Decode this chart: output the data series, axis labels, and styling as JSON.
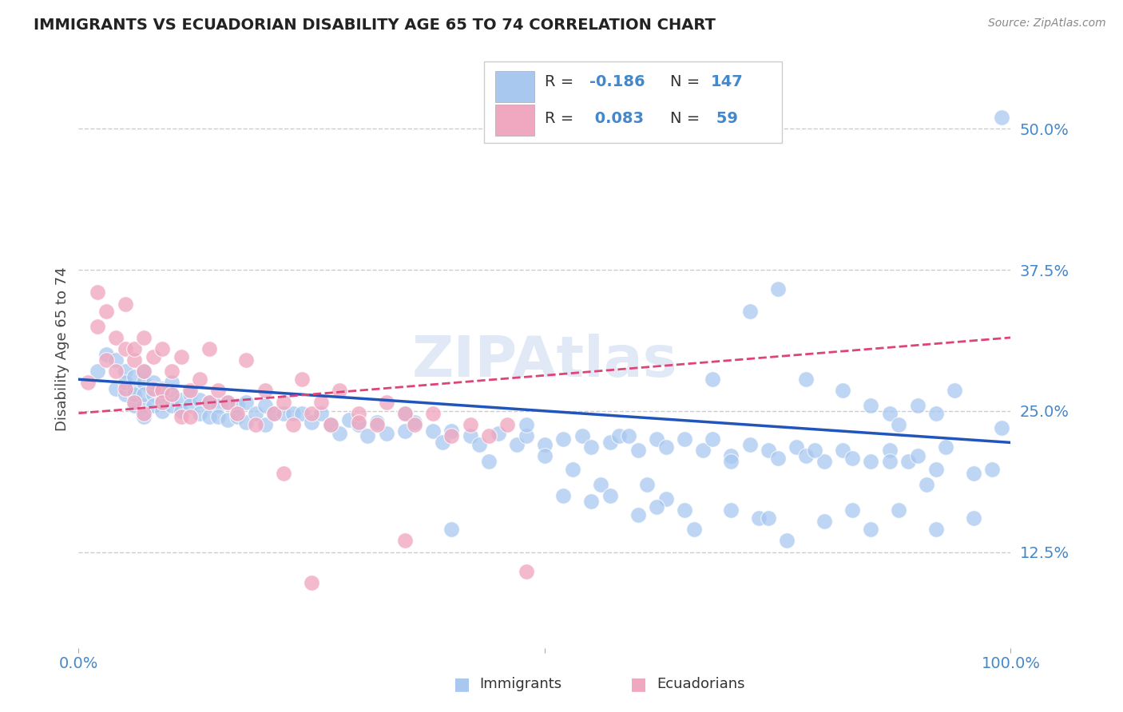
{
  "title": "IMMIGRANTS VS ECUADORIAN DISABILITY AGE 65 TO 74 CORRELATION CHART",
  "source": "Source: ZipAtlas.com",
  "ylabel": "Disability Age 65 to 74",
  "ytick_labels": [
    "12.5%",
    "25.0%",
    "37.5%",
    "50.0%"
  ],
  "ytick_values": [
    0.125,
    0.25,
    0.375,
    0.5
  ],
  "xmin": 0.0,
  "xmax": 1.0,
  "ymin": 0.04,
  "ymax": 0.57,
  "blue_color": "#a8c8f0",
  "pink_color": "#f0a8c0",
  "line_blue": "#2255bb",
  "line_pink": "#dd4477",
  "axis_color": "#4488cc",
  "background": "#ffffff",
  "grid_color": "#cccccc",
  "immigrants_x": [
    0.02,
    0.03,
    0.04,
    0.04,
    0.05,
    0.05,
    0.05,
    0.06,
    0.06,
    0.06,
    0.06,
    0.07,
    0.07,
    0.07,
    0.07,
    0.07,
    0.08,
    0.08,
    0.08,
    0.09,
    0.09,
    0.09,
    0.1,
    0.1,
    0.1,
    0.11,
    0.11,
    0.12,
    0.12,
    0.13,
    0.13,
    0.14,
    0.14,
    0.15,
    0.15,
    0.16,
    0.16,
    0.17,
    0.17,
    0.18,
    0.18,
    0.19,
    0.2,
    0.2,
    0.21,
    0.22,
    0.23,
    0.24,
    0.25,
    0.26,
    0.27,
    0.28,
    0.29,
    0.3,
    0.31,
    0.32,
    0.33,
    0.35,
    0.36,
    0.38,
    0.39,
    0.4,
    0.42,
    0.43,
    0.45,
    0.47,
    0.48,
    0.5,
    0.52,
    0.54,
    0.55,
    0.57,
    0.58,
    0.6,
    0.62,
    0.63,
    0.65,
    0.67,
    0.68,
    0.7,
    0.72,
    0.74,
    0.75,
    0.77,
    0.78,
    0.8,
    0.82,
    0.83,
    0.85,
    0.87,
    0.89,
    0.9,
    0.92,
    0.55,
    0.6,
    0.63,
    0.66,
    0.7,
    0.73,
    0.76,
    0.8,
    0.85,
    0.88,
    0.9,
    0.92,
    0.94,
    0.68,
    0.72,
    0.75,
    0.78,
    0.82,
    0.85,
    0.87,
    0.5,
    0.53,
    0.56,
    0.59,
    0.62,
    0.88,
    0.91,
    0.93,
    0.96,
    0.98,
    0.35,
    0.4,
    0.44,
    0.48,
    0.52,
    0.57,
    0.61,
    0.65,
    0.7,
    0.74,
    0.79,
    0.83,
    0.87,
    0.92,
    0.96,
    0.99,
    0.99
  ],
  "immigrants_y": [
    0.285,
    0.3,
    0.295,
    0.27,
    0.285,
    0.265,
    0.275,
    0.27,
    0.255,
    0.28,
    0.265,
    0.275,
    0.255,
    0.265,
    0.245,
    0.285,
    0.265,
    0.255,
    0.275,
    0.26,
    0.27,
    0.25,
    0.265,
    0.255,
    0.275,
    0.26,
    0.25,
    0.265,
    0.255,
    0.26,
    0.248,
    0.258,
    0.245,
    0.255,
    0.245,
    0.258,
    0.242,
    0.255,
    0.245,
    0.258,
    0.24,
    0.248,
    0.255,
    0.238,
    0.248,
    0.248,
    0.248,
    0.248,
    0.24,
    0.248,
    0.238,
    0.23,
    0.242,
    0.238,
    0.228,
    0.24,
    0.23,
    0.232,
    0.24,
    0.232,
    0.222,
    0.232,
    0.228,
    0.22,
    0.23,
    0.22,
    0.228,
    0.22,
    0.225,
    0.228,
    0.218,
    0.222,
    0.228,
    0.215,
    0.225,
    0.218,
    0.225,
    0.215,
    0.225,
    0.21,
    0.22,
    0.215,
    0.208,
    0.218,
    0.21,
    0.205,
    0.215,
    0.208,
    0.205,
    0.215,
    0.205,
    0.21,
    0.198,
    0.17,
    0.158,
    0.172,
    0.145,
    0.162,
    0.155,
    0.135,
    0.152,
    0.145,
    0.162,
    0.255,
    0.248,
    0.268,
    0.278,
    0.338,
    0.358,
    0.278,
    0.268,
    0.255,
    0.248,
    0.21,
    0.198,
    0.185,
    0.228,
    0.165,
    0.238,
    0.185,
    0.218,
    0.155,
    0.198,
    0.248,
    0.145,
    0.205,
    0.238,
    0.175,
    0.175,
    0.185,
    0.162,
    0.205,
    0.155,
    0.215,
    0.162,
    0.205,
    0.145,
    0.195,
    0.235,
    0.51
  ],
  "ecuadorians_x": [
    0.01,
    0.02,
    0.02,
    0.03,
    0.03,
    0.04,
    0.04,
    0.05,
    0.05,
    0.05,
    0.06,
    0.06,
    0.06,
    0.07,
    0.07,
    0.07,
    0.08,
    0.08,
    0.09,
    0.09,
    0.09,
    0.1,
    0.1,
    0.11,
    0.11,
    0.12,
    0.12,
    0.13,
    0.14,
    0.14,
    0.15,
    0.16,
    0.17,
    0.18,
    0.19,
    0.2,
    0.21,
    0.22,
    0.23,
    0.24,
    0.25,
    0.26,
    0.27,
    0.28,
    0.3,
    0.32,
    0.33,
    0.35,
    0.36,
    0.38,
    0.4,
    0.42,
    0.44,
    0.46,
    0.48,
    0.22,
    0.25,
    0.3,
    0.35
  ],
  "ecuadorians_y": [
    0.275,
    0.325,
    0.355,
    0.295,
    0.338,
    0.315,
    0.285,
    0.305,
    0.27,
    0.345,
    0.258,
    0.295,
    0.305,
    0.285,
    0.315,
    0.248,
    0.27,
    0.298,
    0.268,
    0.305,
    0.258,
    0.285,
    0.265,
    0.245,
    0.298,
    0.268,
    0.245,
    0.278,
    0.258,
    0.305,
    0.268,
    0.258,
    0.248,
    0.295,
    0.238,
    0.268,
    0.248,
    0.258,
    0.238,
    0.278,
    0.248,
    0.258,
    0.238,
    0.268,
    0.248,
    0.238,
    0.258,
    0.248,
    0.238,
    0.248,
    0.228,
    0.238,
    0.228,
    0.238,
    0.108,
    0.195,
    0.098,
    0.24,
    0.135
  ],
  "imm_line_x": [
    0.0,
    1.0
  ],
  "imm_line_y_start": 0.278,
  "imm_line_y_end": 0.222,
  "ecu_line_x": [
    0.0,
    1.0
  ],
  "ecu_line_y_start": 0.248,
  "ecu_line_y_end": 0.315
}
